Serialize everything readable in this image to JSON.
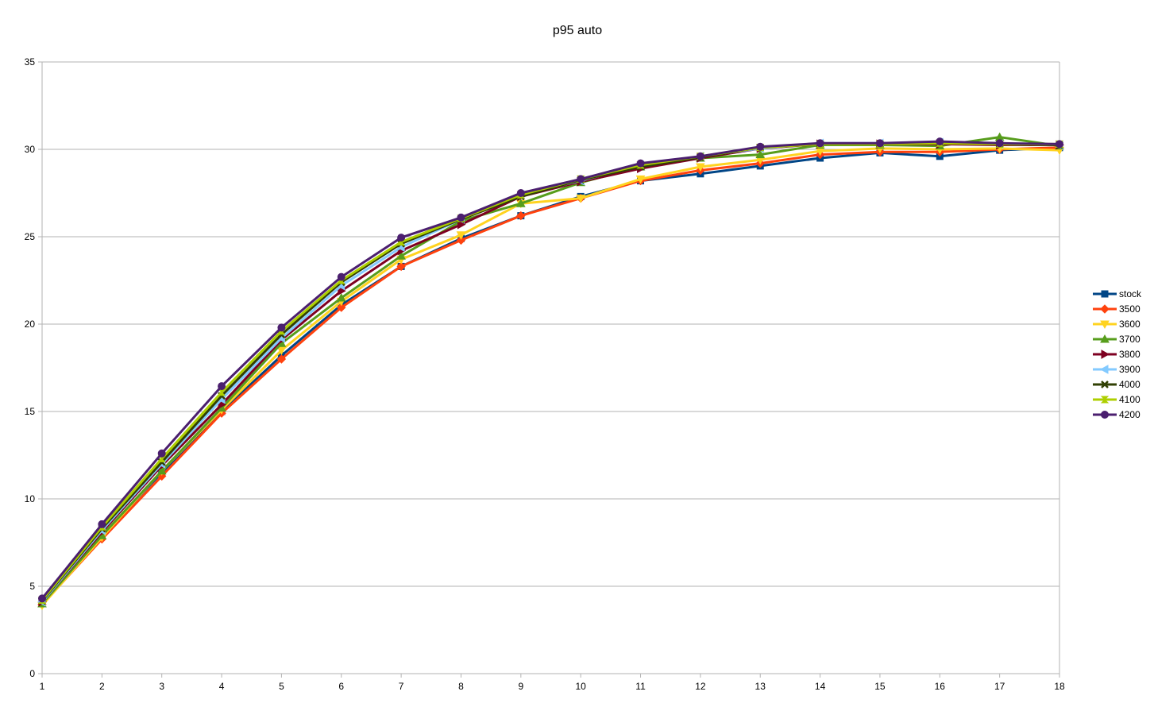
{
  "chart_data": {
    "type": "line",
    "title": "p95 auto",
    "xlabel": "",
    "ylabel": "",
    "x": [
      1,
      2,
      3,
      4,
      5,
      6,
      7,
      8,
      9,
      10,
      11,
      12,
      13,
      14,
      15,
      16,
      17,
      18
    ],
    "ylim": [
      0,
      35
    ],
    "yticks": [
      0,
      5,
      10,
      15,
      20,
      25,
      30,
      35
    ],
    "grid": true,
    "legend_position": "right",
    "series": [
      {
        "name": "stock",
        "color": "#004586",
        "marker": "square",
        "values": [
          4.0,
          7.9,
          11.5,
          15.0,
          18.2,
          21.1,
          23.3,
          24.9,
          26.2,
          27.3,
          28.2,
          28.6,
          29.05,
          29.5,
          29.8,
          29.6,
          29.95,
          30.1
        ]
      },
      {
        "name": "3500",
        "color": "#ff420e",
        "marker": "diamond",
        "values": [
          3.95,
          7.7,
          11.3,
          14.9,
          18.0,
          20.95,
          23.3,
          24.8,
          26.2,
          27.2,
          28.2,
          28.8,
          29.2,
          29.7,
          29.85,
          29.85,
          30.0,
          30.1
        ]
      },
      {
        "name": "3600",
        "color": "#ffd320",
        "marker": "triangle-down",
        "values": [
          3.9,
          7.8,
          11.6,
          15.1,
          18.5,
          21.3,
          23.7,
          25.1,
          26.9,
          27.2,
          28.3,
          29.0,
          29.4,
          29.9,
          30.05,
          30.0,
          30.05,
          29.95
        ]
      },
      {
        "name": "3700",
        "color": "#579d1c",
        "marker": "triangle-up",
        "values": [
          4.0,
          7.9,
          11.6,
          15.2,
          18.9,
          21.5,
          23.9,
          25.9,
          26.9,
          28.1,
          29.0,
          29.5,
          29.7,
          30.25,
          30.25,
          30.2,
          30.7,
          30.2
        ]
      },
      {
        "name": "3800",
        "color": "#7e0021",
        "marker": "triangle-right",
        "values": [
          4.1,
          8.1,
          11.9,
          15.4,
          19.1,
          21.9,
          24.2,
          25.7,
          27.3,
          28.15,
          28.9,
          29.5,
          30.05,
          30.3,
          30.3,
          30.3,
          30.25,
          30.25
        ]
      },
      {
        "name": "3900",
        "color": "#83caff",
        "marker": "triangle-left",
        "values": [
          4.1,
          8.2,
          12.0,
          15.7,
          19.2,
          22.2,
          24.4,
          26.0,
          27.4,
          28.2,
          29.1,
          29.6,
          30.05,
          30.35,
          30.35,
          30.4,
          30.3,
          30.25
        ]
      },
      {
        "name": "4000",
        "color": "#314004",
        "marker": "x",
        "values": [
          4.15,
          8.3,
          12.1,
          15.9,
          19.4,
          22.4,
          24.6,
          26.0,
          27.3,
          28.25,
          29.0,
          29.55,
          30.1,
          30.3,
          30.3,
          30.35,
          30.3,
          30.25
        ]
      },
      {
        "name": "4100",
        "color": "#aecf00",
        "marker": "hourglass",
        "values": [
          4.2,
          8.4,
          12.3,
          16.1,
          19.6,
          22.5,
          24.7,
          26.05,
          27.4,
          28.3,
          29.1,
          29.6,
          30.1,
          30.3,
          30.3,
          30.35,
          30.3,
          30.3
        ]
      },
      {
        "name": "4200",
        "color": "#4b1f6f",
        "marker": "circle",
        "values": [
          4.3,
          8.55,
          12.6,
          16.45,
          19.8,
          22.7,
          24.95,
          26.1,
          27.5,
          28.3,
          29.2,
          29.6,
          30.15,
          30.35,
          30.35,
          30.45,
          30.35,
          30.3
        ]
      }
    ]
  }
}
